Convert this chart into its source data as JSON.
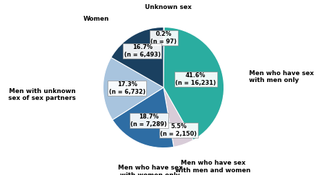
{
  "slices": [
    {
      "label": "Unknown sex",
      "pct": 0.2,
      "n": "n = 97",
      "color": "#1a6060"
    },
    {
      "label": "Men who have sex\nwith men only",
      "pct": 41.6,
      "n": "n = 16,231",
      "color": "#2aada0"
    },
    {
      "label": "Men who have sex\nwith men and women",
      "pct": 5.5,
      "n": "n = 2,150",
      "color": "#d8ccd8"
    },
    {
      "label": "Men who have sex\nwith women only",
      "pct": 18.7,
      "n": "n = 7,289",
      "color": "#2e6da4"
    },
    {
      "label": "Men with unknown\nsex of sex partners",
      "pct": 17.3,
      "n": "n = 6,732",
      "color": "#a8c4de"
    },
    {
      "label": "Women",
      "pct": 16.7,
      "n": "n = 6,493",
      "color": "#1a4060"
    }
  ],
  "background_color": "#ffffff",
  "label_fontsize": 6.5,
  "inner_fontsize": 6.0
}
